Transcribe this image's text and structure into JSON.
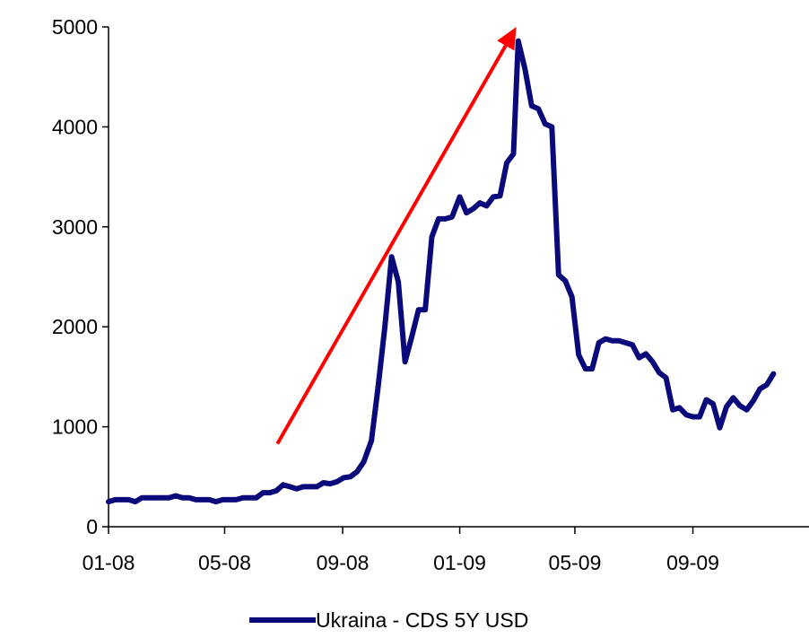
{
  "chart_data": {
    "type": "line",
    "title": "",
    "xlabel": "",
    "ylabel": "",
    "ylim": [
      0,
      5000
    ],
    "xlim": [
      "2008-01-01",
      "2009-12-31"
    ],
    "yticks": [
      "0",
      "1000",
      "2000",
      "3000",
      "4000",
      "5000"
    ],
    "xticks": [
      {
        "date": "2008-01-01",
        "label": "01-08"
      },
      {
        "date": "2008-05-01",
        "label": "05-08"
      },
      {
        "date": "2008-09-01",
        "label": "09-08"
      },
      {
        "date": "2009-01-01",
        "label": "01-09"
      },
      {
        "date": "2009-05-01",
        "label": "05-09"
      },
      {
        "date": "2009-09-01",
        "label": "09-09"
      }
    ],
    "grid": false,
    "legend": "bottom",
    "series": [
      {
        "name": "Ukraina - CDS 5Y USD",
        "color": "#0a0a7a",
        "points": [
          [
            "2008-01-01",
            250
          ],
          [
            "2008-01-08",
            270
          ],
          [
            "2008-01-15",
            270
          ],
          [
            "2008-01-22",
            270
          ],
          [
            "2008-01-29",
            250
          ],
          [
            "2008-02-05",
            290
          ],
          [
            "2008-02-12",
            290
          ],
          [
            "2008-02-19",
            290
          ],
          [
            "2008-02-26",
            290
          ],
          [
            "2008-03-04",
            290
          ],
          [
            "2008-03-11",
            310
          ],
          [
            "2008-03-18",
            290
          ],
          [
            "2008-03-25",
            290
          ],
          [
            "2008-04-01",
            270
          ],
          [
            "2008-04-08",
            270
          ],
          [
            "2008-04-15",
            270
          ],
          [
            "2008-04-22",
            250
          ],
          [
            "2008-04-29",
            270
          ],
          [
            "2008-05-06",
            270
          ],
          [
            "2008-05-13",
            270
          ],
          [
            "2008-05-20",
            290
          ],
          [
            "2008-05-27",
            290
          ],
          [
            "2008-06-03",
            290
          ],
          [
            "2008-06-10",
            340
          ],
          [
            "2008-06-17",
            340
          ],
          [
            "2008-06-24",
            360
          ],
          [
            "2008-07-01",
            420
          ],
          [
            "2008-07-08",
            400
          ],
          [
            "2008-07-15",
            380
          ],
          [
            "2008-07-22",
            400
          ],
          [
            "2008-07-29",
            400
          ],
          [
            "2008-08-05",
            400
          ],
          [
            "2008-08-12",
            440
          ],
          [
            "2008-08-19",
            430
          ],
          [
            "2008-08-26",
            450
          ],
          [
            "2008-09-02",
            490
          ],
          [
            "2008-09-09",
            500
          ],
          [
            "2008-09-16",
            550
          ],
          [
            "2008-09-23",
            650
          ],
          [
            "2008-10-01",
            860
          ],
          [
            "2008-10-08",
            1400
          ],
          [
            "2008-10-15",
            2000
          ],
          [
            "2008-10-22",
            2700
          ],
          [
            "2008-10-29",
            2450
          ],
          [
            "2008-11-05",
            1650
          ],
          [
            "2008-11-12",
            1900
          ],
          [
            "2008-11-19",
            2170
          ],
          [
            "2008-11-26",
            2170
          ],
          [
            "2008-12-03",
            2900
          ],
          [
            "2008-12-10",
            3080
          ],
          [
            "2008-12-17",
            3080
          ],
          [
            "2008-12-24",
            3100
          ],
          [
            "2009-01-01",
            3300
          ],
          [
            "2009-01-08",
            3140
          ],
          [
            "2009-01-15",
            3180
          ],
          [
            "2009-01-22",
            3240
          ],
          [
            "2009-01-29",
            3210
          ],
          [
            "2009-02-05",
            3300
          ],
          [
            "2009-02-12",
            3310
          ],
          [
            "2009-02-19",
            3640
          ],
          [
            "2009-02-26",
            3730
          ],
          [
            "2009-03-03",
            4860
          ],
          [
            "2009-03-10",
            4580
          ],
          [
            "2009-03-17",
            4210
          ],
          [
            "2009-03-24",
            4180
          ],
          [
            "2009-03-31",
            4030
          ],
          [
            "2009-04-07",
            4000
          ],
          [
            "2009-04-14",
            2520
          ],
          [
            "2009-04-21",
            2460
          ],
          [
            "2009-04-28",
            2300
          ],
          [
            "2009-05-05",
            1720
          ],
          [
            "2009-05-12",
            1580
          ],
          [
            "2009-05-19",
            1580
          ],
          [
            "2009-05-26",
            1840
          ],
          [
            "2009-06-02",
            1880
          ],
          [
            "2009-06-09",
            1860
          ],
          [
            "2009-06-16",
            1860
          ],
          [
            "2009-06-23",
            1840
          ],
          [
            "2009-06-30",
            1820
          ],
          [
            "2009-07-07",
            1690
          ],
          [
            "2009-07-14",
            1730
          ],
          [
            "2009-07-21",
            1650
          ],
          [
            "2009-07-28",
            1540
          ],
          [
            "2009-08-04",
            1490
          ],
          [
            "2009-08-11",
            1170
          ],
          [
            "2009-08-18",
            1190
          ],
          [
            "2009-08-25",
            1120
          ],
          [
            "2009-09-01",
            1100
          ],
          [
            "2009-09-08",
            1100
          ],
          [
            "2009-09-15",
            1270
          ],
          [
            "2009-09-22",
            1230
          ],
          [
            "2009-09-29",
            990
          ],
          [
            "2009-10-06",
            1200
          ],
          [
            "2009-10-13",
            1290
          ],
          [
            "2009-10-20",
            1210
          ],
          [
            "2009-10-27",
            1170
          ],
          [
            "2009-11-03",
            1260
          ],
          [
            "2009-11-10",
            1380
          ],
          [
            "2009-11-17",
            1420
          ],
          [
            "2009-11-24",
            1530
          ]
        ]
      }
    ],
    "annotations": [
      {
        "type": "arrow",
        "color": "#ff0000",
        "from": [
          "2008-06-25",
          830
        ],
        "to": [
          "2009-03-01",
          5000
        ]
      }
    ]
  }
}
